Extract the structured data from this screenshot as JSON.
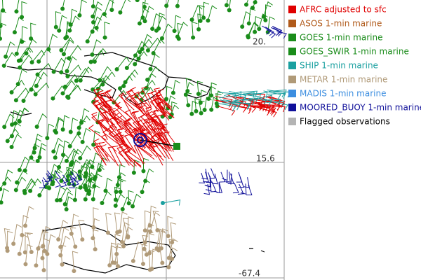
{
  "legend": {
    "items": [
      {
        "label": "AFRC adjusted to sfc",
        "color": "#e00000",
        "label_color": "#e00000"
      },
      {
        "label": "ASOS 1-min marine",
        "color": "#b05a1a",
        "label_color": "#b05a1a"
      },
      {
        "label": "GOES 1-min marine",
        "color": "#1a8c1a",
        "label_color": "#1a8c1a"
      },
      {
        "label": "GOES_SWIR 1-min marine",
        "color": "#1a8c1a",
        "label_color": "#1a8c1a"
      },
      {
        "label": "SHIP 1-min marine",
        "color": "#1aa0a0",
        "label_color": "#1aa0a0"
      },
      {
        "label": "METAR 1-min marine",
        "color": "#b09a78",
        "label_color": "#b09a78"
      },
      {
        "label": "MADIS 1-min marine",
        "color": "#3c8ee0",
        "label_color": "#3c8ee0"
      },
      {
        "label": "MOORED_BUOY 1-min marine",
        "color": "#10109a",
        "label_color": "#10109a"
      },
      {
        "label": "Flagged observations",
        "color": "#b4b4b4",
        "label_color": "#000000"
      }
    ]
  },
  "grid_labels": [
    "20.",
    "15.6",
    "-67.4"
  ]
}
